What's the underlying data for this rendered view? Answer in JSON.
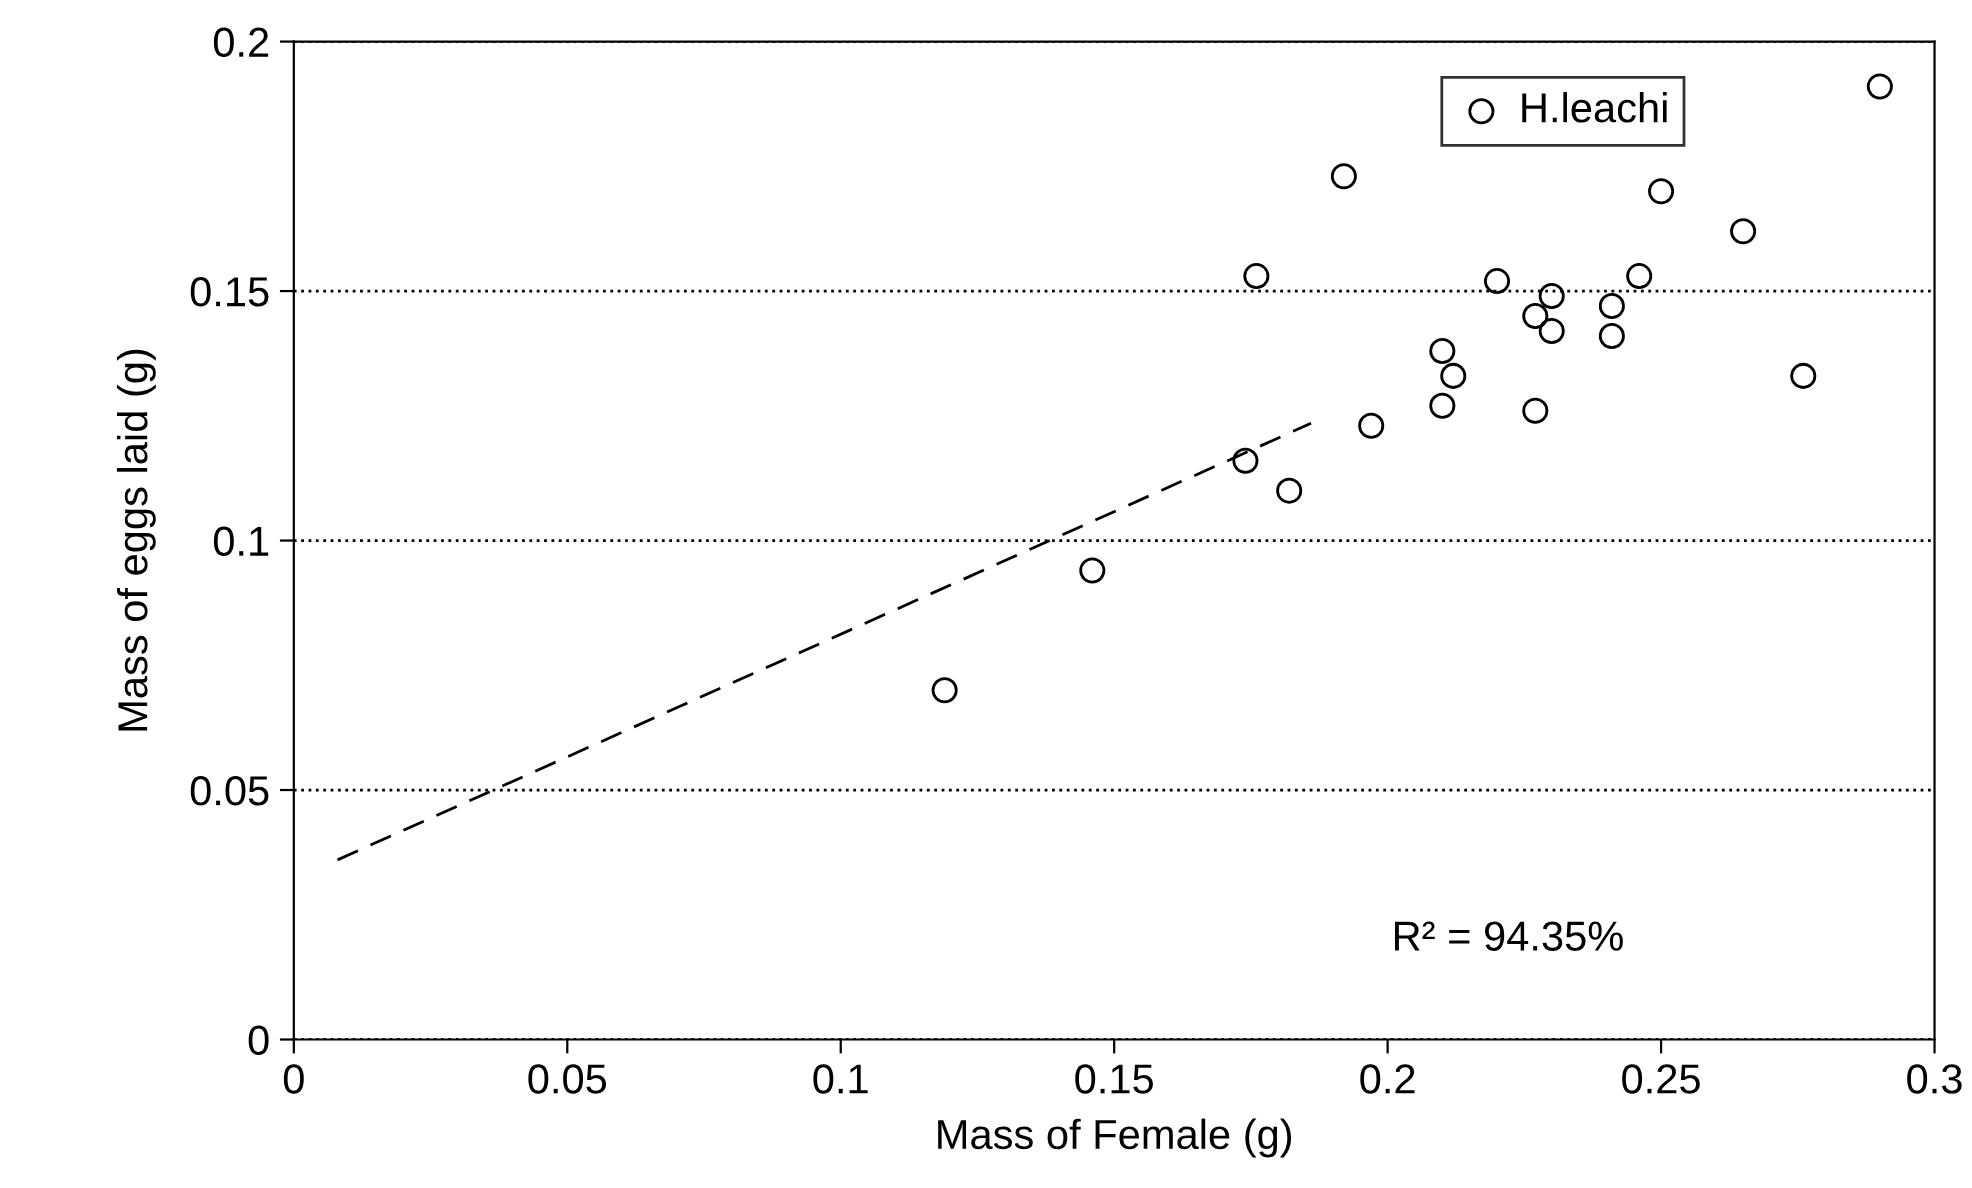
{
  "chart_data": {
    "type": "scatter",
    "xlabel": "Mass of Female (g)",
    "ylabel": "Mass of eggs laid (g)",
    "xlim": [
      0,
      0.3
    ],
    "ylim": [
      0,
      0.2
    ],
    "xticks": [
      0,
      0.05,
      0.1,
      0.15,
      0.2,
      0.25,
      0.3
    ],
    "yticks": [
      0,
      0.05,
      0.1,
      0.15,
      0.2
    ],
    "grid": "y",
    "legend": "top right",
    "series": [
      {
        "name": "H.leachi",
        "marker": "circle",
        "color": "#000000",
        "x": [
          0.119,
          0.146,
          0.174,
          0.182,
          0.176,
          0.192,
          0.197,
          0.21,
          0.212,
          0.21,
          0.22,
          0.227,
          0.227,
          0.23,
          0.23,
          0.241,
          0.241,
          0.246,
          0.25,
          0.265,
          0.276,
          0.29
        ],
        "values": [
          0.07,
          0.094,
          0.116,
          0.11,
          0.153,
          0.173,
          0.123,
          0.138,
          0.133,
          0.127,
          0.152,
          0.126,
          0.145,
          0.149,
          0.142,
          0.141,
          0.147,
          0.153,
          0.17,
          0.162,
          0.133,
          0.191
        ]
      },
      {
        "type": "line",
        "line_style": "dashed",
        "color": "#000000",
        "x": [
          0.008,
          0.186
        ],
        "values": [
          0.036,
          0.1235
        ]
      }
    ],
    "annotations": [
      "R² = 94.35%"
    ]
  }
}
